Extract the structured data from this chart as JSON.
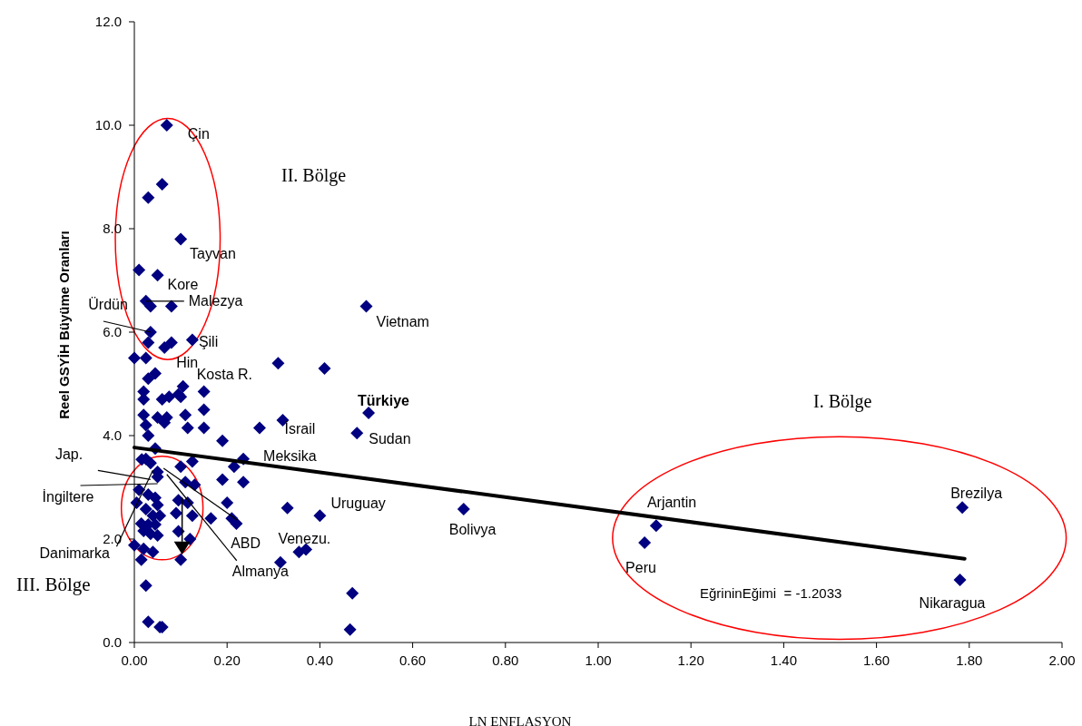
{
  "chart_data": {
    "type": "scatter",
    "xlabel": "LN ENFLASYON",
    "ylabel": "Reel GSYİH Büyüme Oranları",
    "xlim": [
      0,
      2
    ],
    "ylim": [
      0,
      12
    ],
    "xticks": [
      {
        "value": 0,
        "label": "0.00"
      },
      {
        "value": 0.2,
        "label": "0.20"
      },
      {
        "value": 0.4,
        "label": "0.40"
      },
      {
        "value": 0.6,
        "label": "0.60"
      },
      {
        "value": 0.8,
        "label": "0.80"
      },
      {
        "value": 1,
        "label": "1.00"
      },
      {
        "value": 1.2,
        "label": "1.20"
      },
      {
        "value": 1.4,
        "label": "1.40"
      },
      {
        "value": 1.6,
        "label": "1.60"
      },
      {
        "value": 1.8,
        "label": "1.80"
      },
      {
        "value": 2,
        "label": "2.00"
      }
    ],
    "yticks": [
      {
        "value": 0,
        "label": "0.0"
      },
      {
        "value": 2,
        "label": "2.0"
      },
      {
        "value": 4,
        "label": "4.0"
      },
      {
        "value": 6,
        "label": "6.0"
      },
      {
        "value": 8,
        "label": "8.0"
      },
      {
        "value": 10,
        "label": "10.0"
      },
      {
        "value": 12,
        "label": "12.0"
      }
    ],
    "grid": false,
    "marker": "diamond",
    "series": [
      {
        "color": "#000080",
        "x": [
          0.07,
          0.06,
          0.03,
          0.1,
          0.01,
          0.05,
          0.025,
          0.035,
          0.08,
          0.035,
          0.03,
          0.08,
          0.065,
          0.125,
          0.0,
          0.025,
          0.045,
          0.03,
          0.5,
          0.31,
          0.41,
          0.505,
          0.48,
          0.32,
          0.27,
          0.19,
          0.15,
          0.15,
          0.15,
          0.115,
          0.235,
          0.215,
          0.235,
          0.19,
          0.2,
          0.33,
          0.4,
          0.21,
          0.22,
          0.355,
          0.37,
          0.315,
          0.47,
          0.465,
          0.165,
          0.02,
          0.02,
          0.02,
          0.025,
          0.03,
          0.06,
          0.075,
          0.095,
          0.105,
          0.1,
          0.05,
          0.07,
          0.065,
          0.11,
          0.045,
          0.025,
          0.1,
          0.125,
          0.115,
          0.13,
          0.11,
          0.095,
          0.09,
          0.095,
          0.12,
          0.1,
          0.125,
          0.016,
          0.035,
          0.05,
          0.05,
          0.01,
          0.03,
          0.045,
          0.05,
          0.025,
          0.04,
          0.055,
          0.005,
          0.015,
          0.03,
          0.045,
          0.02,
          0.035,
          0.05,
          0.0,
          0.02,
          0.04,
          0.015,
          0.025,
          0.03,
          0.055,
          0.06,
          1.125,
          1.1,
          0.71,
          1.785,
          1.78
        ],
        "values": [
          10.0,
          8.86,
          8.6,
          7.8,
          7.2,
          7.1,
          6.6,
          6.5,
          6.5,
          6.0,
          5.8,
          5.8,
          5.7,
          5.85,
          5.5,
          5.5,
          5.2,
          5.1,
          6.5,
          5.4,
          5.3,
          4.44,
          4.05,
          4.3,
          4.15,
          3.9,
          4.15,
          4.5,
          4.85,
          4.15,
          3.55,
          3.4,
          3.1,
          3.15,
          2.7,
          2.6,
          2.45,
          2.4,
          2.3,
          1.75,
          1.8,
          1.55,
          0.95,
          0.25,
          2.4,
          4.85,
          4.7,
          4.4,
          4.2,
          4.0,
          4.7,
          4.75,
          4.8,
          4.95,
          4.75,
          4.35,
          4.35,
          4.25,
          4.4,
          3.75,
          3.55,
          3.4,
          3.5,
          2.7,
          3.05,
          3.1,
          2.75,
          2.5,
          2.15,
          2.0,
          1.6,
          2.45,
          3.54,
          3.47,
          3.3,
          3.2,
          2.95,
          2.86,
          2.8,
          2.66,
          2.58,
          2.45,
          2.45,
          2.7,
          2.3,
          2.28,
          2.28,
          2.16,
          2.1,
          2.07,
          1.88,
          1.81,
          1.75,
          1.6,
          1.1,
          0.4,
          0.3,
          0.3,
          2.26,
          1.93,
          2.58,
          2.61,
          1.21
        ]
      },
      {
        "type": "line",
        "color": "#000000",
        "marker": "none",
        "line_style": "solid",
        "x": [
          0,
          1.79
        ],
        "values": [
          3.77,
          1.62
        ]
      }
    ],
    "annotations": [
      {
        "text": "Çin",
        "x": 0.07,
        "y": 10.0
      },
      {
        "text": "Tayvan",
        "x": 0.1,
        "y": 7.8
      },
      {
        "text": "Kore",
        "x": 0.05,
        "y": 7.1
      },
      {
        "text": "Malezya",
        "x": 0.025,
        "y": 6.6
      },
      {
        "text": "Ürdün",
        "x": 0.035,
        "y": 6.0
      },
      {
        "text": "Şili",
        "x": 0.125,
        "y": 5.85
      },
      {
        "text": "Hin",
        "x": 0.065,
        "y": 5.7
      },
      {
        "text": "Kosta R.",
        "x": 0.105,
        "y": 4.95
      },
      {
        "text": "Türkiye",
        "x": 0.505,
        "y": 4.44
      },
      {
        "text": "İsrail",
        "x": 0.32,
        "y": 4.3
      },
      {
        "text": "Sudan",
        "x": 0.48,
        "y": 4.05
      },
      {
        "text": "Vietnam",
        "x": 0.5,
        "y": 6.5
      },
      {
        "text": "Meksika",
        "x": 0.235,
        "y": 3.55
      },
      {
        "text": "Uruguay",
        "x": 0.4,
        "y": 2.45
      },
      {
        "text": "Venezu.",
        "x": 0.355,
        "y": 1.75
      },
      {
        "text": "Bolivya",
        "x": 0.71,
        "y": 2.58
      },
      {
        "text": "Arjantin",
        "x": 1.125,
        "y": 2.26
      },
      {
        "text": "Peru",
        "x": 1.1,
        "y": 1.93
      },
      {
        "text": "Brezilya",
        "x": 1.785,
        "y": 2.61
      },
      {
        "text": "Nikaragua",
        "x": 1.78,
        "y": 1.21
      },
      {
        "text": "Jap.",
        "x": 0.035,
        "y": 3.15
      },
      {
        "text": "İngiltere",
        "x": 0.05,
        "y": 3.07
      },
      {
        "text": "Danimarka",
        "x": 0.04,
        "y": 3.33
      },
      {
        "text": "ABD",
        "x": 0.063,
        "y": 3.37
      },
      {
        "text": "Almanya",
        "x": 0.07,
        "y": 3.25
      },
      "II. Bölge",
      "I. Bölge",
      "III. Bölge",
      "EğrininEğimi  = -1.2033"
    ]
  }
}
